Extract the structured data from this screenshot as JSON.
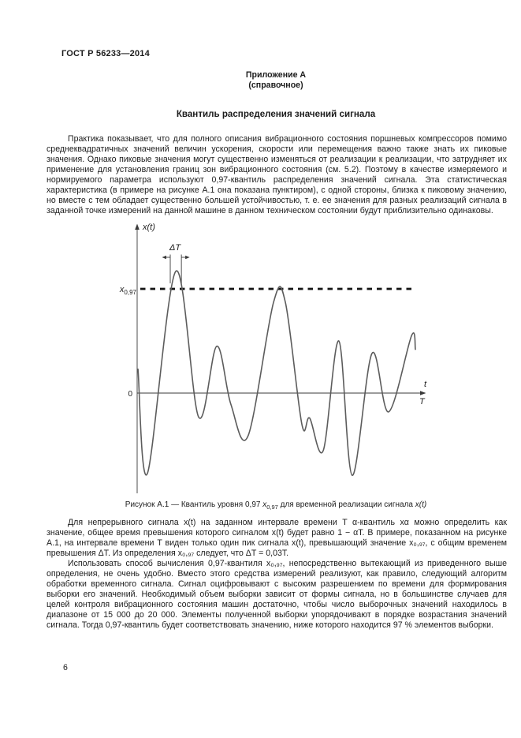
{
  "header": {
    "doc_code": "ГОСТ Р 56233—2014"
  },
  "annex": {
    "line1": "Приложение А",
    "line2": "(справочное)"
  },
  "title": "Квантиль распределения значений сигнала",
  "paragraphs": {
    "p1": "Практика показывает, что для полного описания вибрационного состояния поршневых компрессоров помимо среднеквадратичных значений величин ускорения, скорости или перемещения важно также знать их пиковые значения. Однако пиковые значения могут существенно изменяться от реализации к реализации, что затрудняет их применение для установления границ зон вибрационного состояния (см. 5.2). Поэтому в качестве измеряемого и нормируемого параметра используют 0,97-квантиль распределения значений сигнала. Эта статистическая характеристика (в примере на рисунке А.1 она показана пунктиром), с одной стороны, близка к пиковому значению, но вместе с тем обладает существенно большей устойчивостью, т. е. ее значения для разных реализаций сигнала в заданной точке измерений на данной машине в данном техническом состоянии будут приблизительно одинаковы.",
    "p2": "Для непрерывного сигнала x(t) на заданном интервале времени T α-квантиль xα можно определить как значение, общее время превышения которого сигналом x(t) будет равно 1 − αT. В примере, показанном на рисунке А.1, на интервале времени T виден только один пик сигнала x(t), превышающий значение x₀,₉₇, с общим временем превышения ΔT. Из определения x₀,₉₇ следует, что ΔT = 0,03T.",
    "p3": "Использовать способ вычисления 0,97-квантиля x₀,₉₇, непосредственно вытекающий из приведенного выше определения, не очень удобно. Вместо этого средства измерений реализуют, как правило, следующий алгоритм обработки временного сигнала. Сигнал оцифровывают с высоким разрешением по времени для формирования выборки его значений. Необходимый объем выборки зависит от формы сигнала, но в большинстве случаев для целей контроля вибрационного состояния машин достаточно, чтобы число выборочных значений находилось в диапазоне от 15 000 до 20 000. Элементы полученной выборки упорядочивают в порядке возрастания значений сигнала. Тогда 0,97-квантиль будет соответствовать значению, ниже которого находится 97 % элементов выборки."
  },
  "figure": {
    "caption": {
      "prefix": "Рисунок А.1 — Квантиль уровня 0,97 ",
      "var1": "x",
      "sub1": "0,97",
      "middle": " для временной реализации сигнала ",
      "var2": "x(t)"
    },
    "labels": {
      "y_axis": "x(t)",
      "delta_t": "ΔT",
      "quantile_base": "x",
      "quantile_sub": "0,97",
      "zero": "0",
      "t_axis": "t",
      "t_end": "T"
    }
  },
  "chart_data": {
    "type": "line",
    "title": "Рисунок А.1 — Квантиль уровня 0,97 x₀,₉₇ для временной реализации сигнала x(t)",
    "xlabel": "t",
    "ylabel": "x(t)",
    "x_range": [
      0,
      1
    ],
    "x_end_label": "T",
    "y_range_shown": [
      -1.0,
      1.5
    ],
    "grid": false,
    "quantile": {
      "label": "x₀,₉₇",
      "level": 1.0,
      "style": "dashed-horizontal"
    },
    "delta_t_annotation": {
      "label": "ΔT",
      "t_start": 0.119,
      "t_end": 0.159,
      "relation": "ΔT = 0,03T"
    },
    "series": [
      {
        "name": "x(t)",
        "units": "relative, x₀,₉₇ = 1.0",
        "points": [
          [
            0.003,
            0.23
          ],
          [
            0.037,
            -0.77
          ],
          [
            0.139,
            1.17
          ],
          [
            0.221,
            -0.23
          ],
          [
            0.286,
            0.45
          ],
          [
            0.337,
            -0.11
          ],
          [
            0.399,
            -0.41
          ],
          [
            0.49,
            0.87
          ],
          [
            0.533,
            0.87
          ],
          [
            0.592,
            -0.3
          ],
          [
            0.62,
            -0.24
          ],
          [
            0.669,
            -0.55
          ],
          [
            0.725,
            0.5
          ],
          [
            0.773,
            -0.79
          ],
          [
            0.844,
            0.38
          ],
          [
            0.904,
            -0.18
          ],
          [
            0.986,
            0.55
          ],
          [
            1.0,
            0.42
          ]
        ]
      }
    ]
  },
  "page": {
    "number": "6"
  },
  "colors": {
    "background": "#ffffff",
    "text": "#1c1c1c",
    "curve": "#5c5c5c",
    "axis": "#3a3a3a",
    "dashed_quantile": "#141414"
  }
}
